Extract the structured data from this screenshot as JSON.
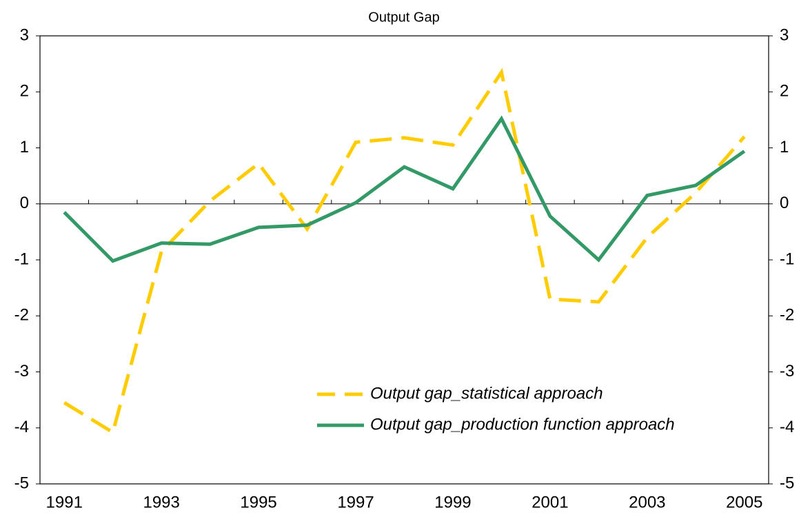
{
  "chart_data": {
    "type": "line",
    "title": "Output Gap",
    "categories": [
      "1991",
      null,
      "1993",
      null,
      "1995",
      null,
      "1997",
      null,
      "1999",
      null,
      "2001",
      null,
      "2003",
      null,
      "2005"
    ],
    "series": [
      {
        "name": "Output gap_statistical approach",
        "color": "#FFCC00",
        "dash": true,
        "values": [
          -3.55,
          -4.08,
          -0.85,
          0.05,
          0.72,
          -0.45,
          1.1,
          1.18,
          1.05,
          2.35,
          -1.7,
          -1.75,
          -0.6,
          0.2,
          1.2
        ]
      },
      {
        "name": "Output gap_production function approach",
        "color": "#339966",
        "dash": false,
        "values": [
          -0.15,
          -1.02,
          -0.7,
          -0.72,
          -0.42,
          -0.38,
          0.02,
          0.66,
          0.27,
          1.52,
          -0.22,
          -1.0,
          0.15,
          0.33,
          0.94
        ]
      }
    ],
    "ylim": [
      -5,
      3
    ],
    "yticks": [
      -5,
      -4,
      -3,
      -2,
      -1,
      0,
      1,
      2,
      3
    ],
    "y2lim": [
      -5,
      3
    ],
    "y2ticks": [
      -5,
      -4,
      -3,
      -2,
      -1,
      0,
      1,
      2,
      3
    ]
  }
}
